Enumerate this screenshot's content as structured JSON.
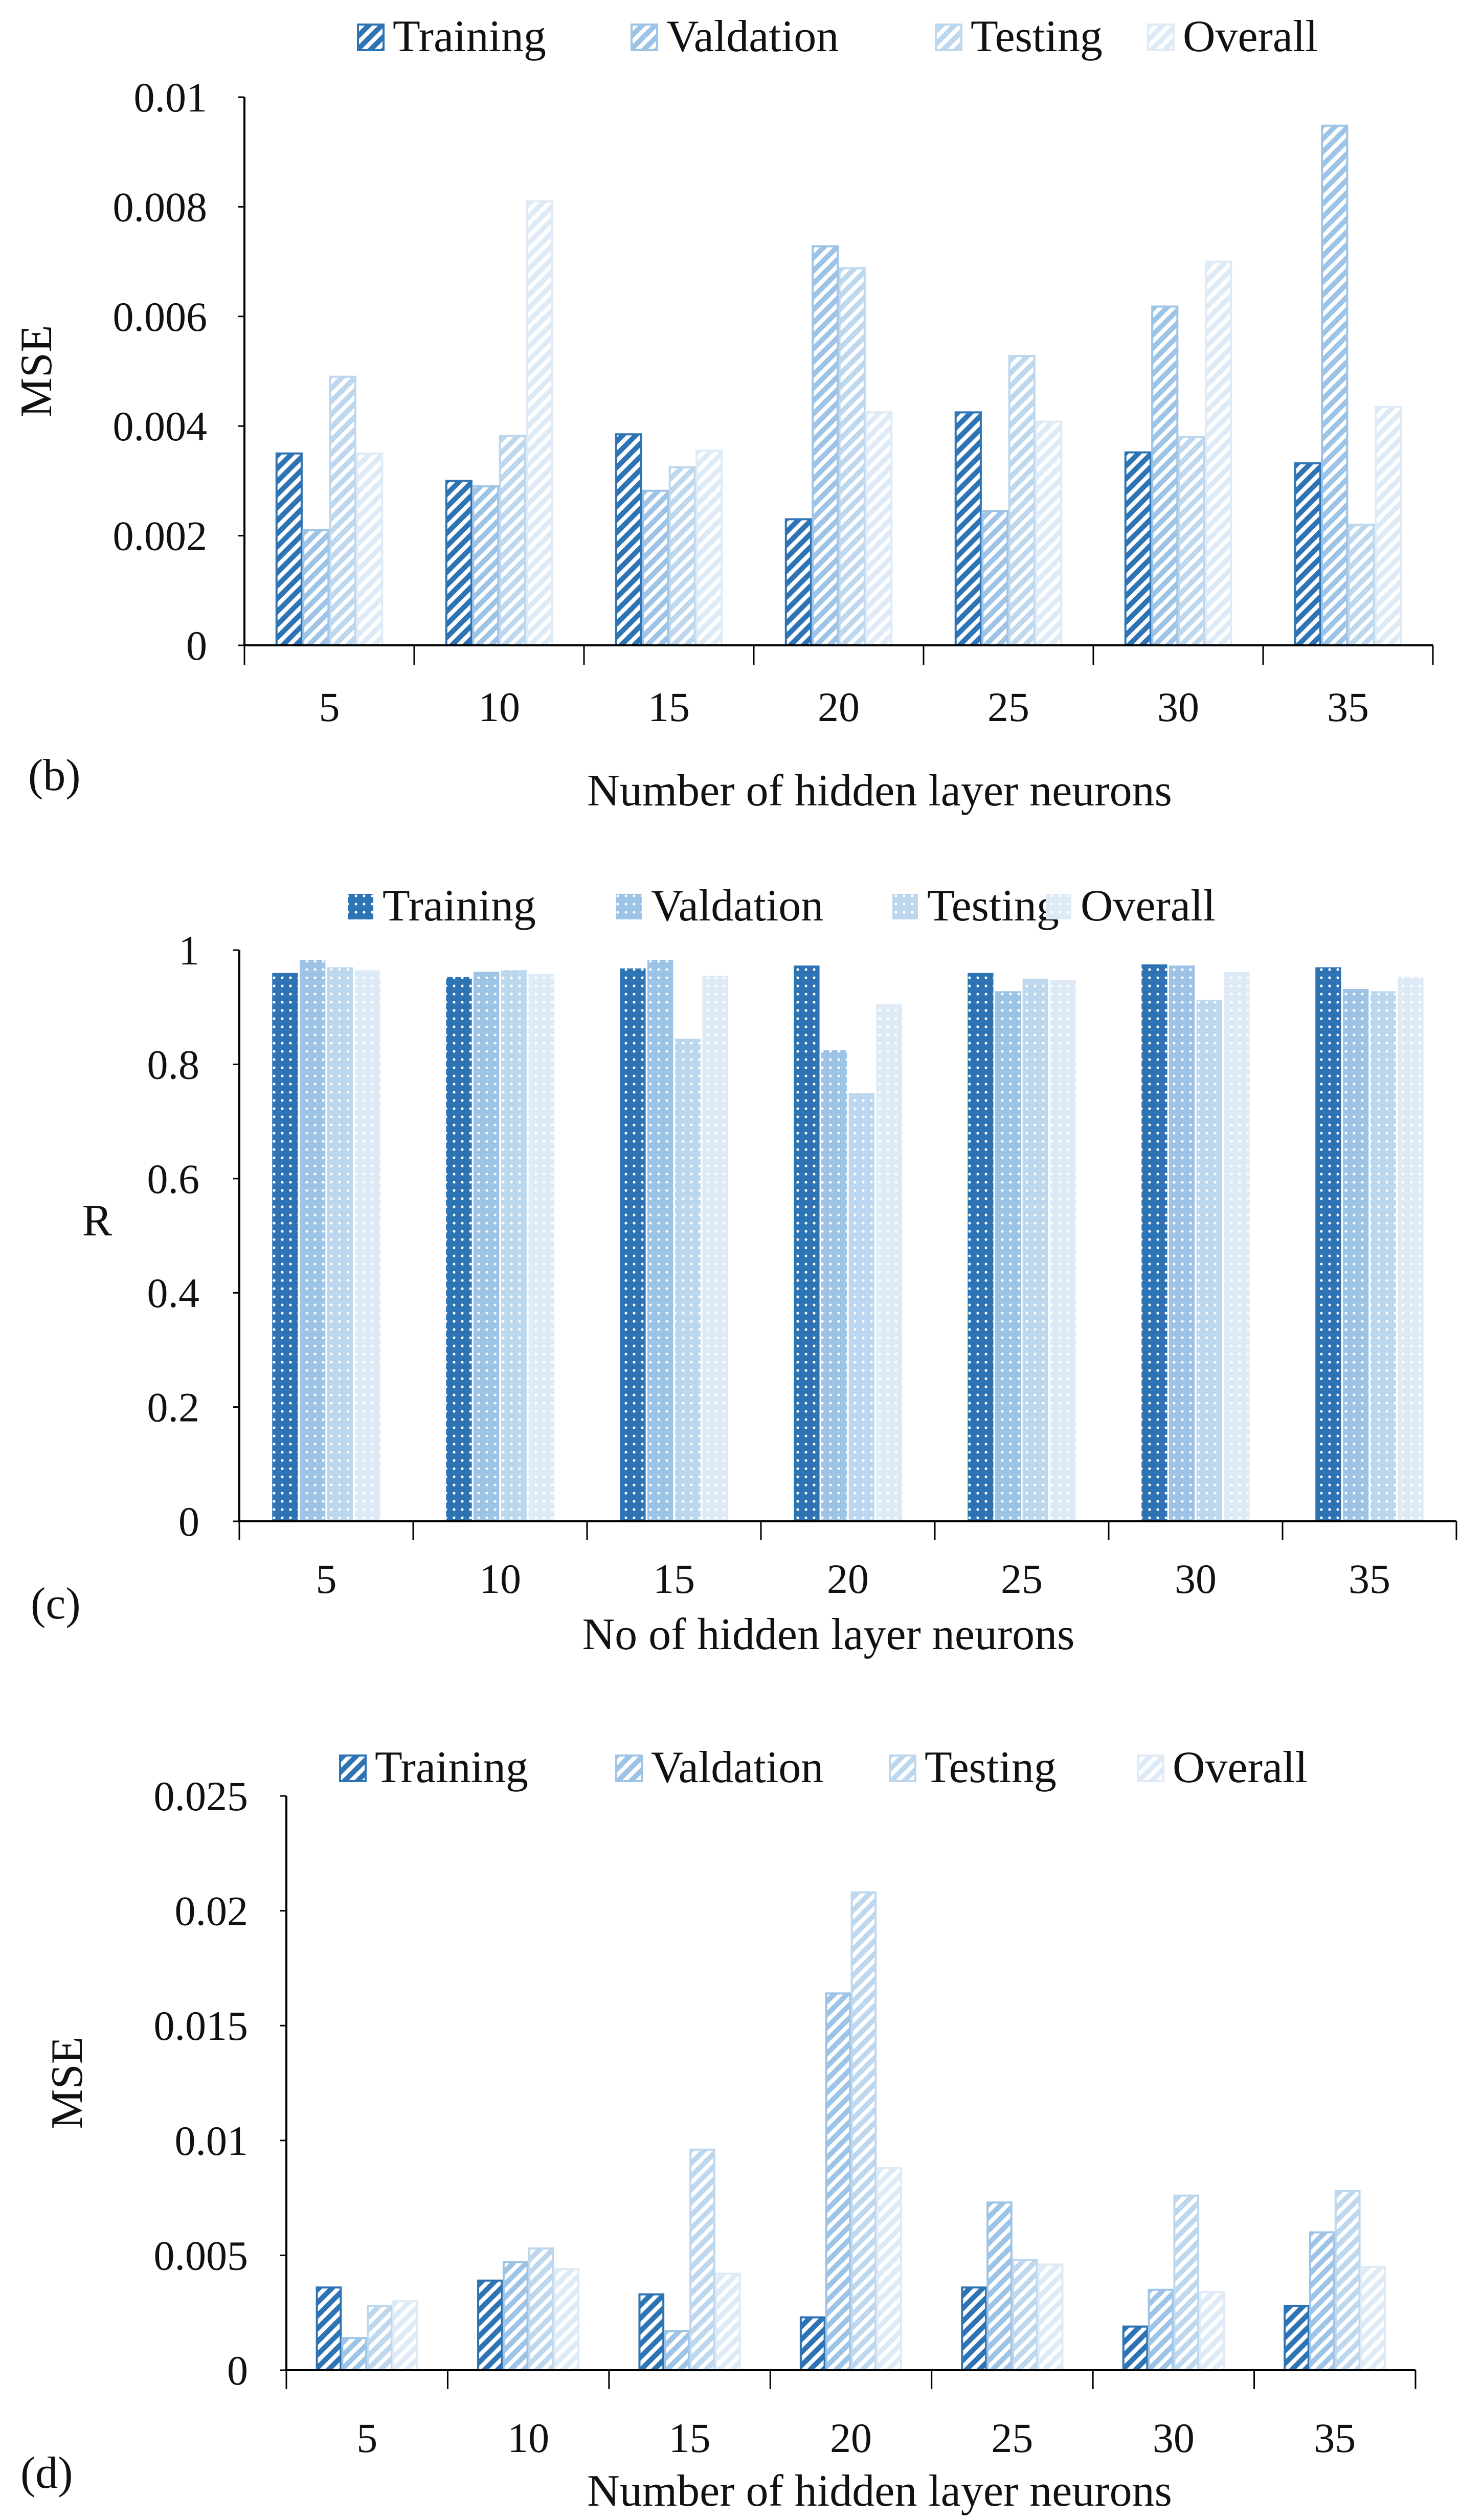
{
  "colors": {
    "training": "#2e74b5",
    "validation": "#9dc3e6",
    "testing": "#bdd7ee",
    "overall": "#deebf7",
    "axis": "#000000",
    "dot": "#ffffff"
  },
  "chart_data": [
    {
      "panel": "(b)",
      "type": "bar",
      "pattern": "hatch",
      "categories": [
        "5",
        "10",
        "15",
        "20",
        "25",
        "30",
        "35"
      ],
      "series": [
        {
          "name": "Training",
          "values": [
            0.0035,
            0.003,
            0.00385,
            0.0023,
            0.00425,
            0.00352,
            0.00332
          ]
        },
        {
          "name": "Valdation",
          "values": [
            0.0021,
            0.0029,
            0.00282,
            0.00728,
            0.00245,
            0.00618,
            0.00948
          ]
        },
        {
          "name": "Testing",
          "values": [
            0.0049,
            0.00382,
            0.00325,
            0.00688,
            0.00528,
            0.0038,
            0.0022
          ]
        },
        {
          "name": "Overall",
          "values": [
            0.0035,
            0.0081,
            0.00355,
            0.00425,
            0.00408,
            0.007,
            0.00435
          ]
        }
      ],
      "xlabel": "Number of hidden layer neurons",
      "ylabel": "MSE",
      "ylim": [
        0,
        0.01
      ],
      "yticks": [
        "0",
        "0.002",
        "0.004",
        "0.006",
        "0.008",
        "0.01"
      ],
      "legend": "top"
    },
    {
      "panel": "(c)",
      "type": "bar",
      "pattern": "dots",
      "categories": [
        "5",
        "10",
        "15",
        "20",
        "25",
        "30",
        "35"
      ],
      "series": [
        {
          "name": "Training",
          "values": [
            0.96,
            0.953,
            0.968,
            0.973,
            0.96,
            0.975,
            0.97
          ]
        },
        {
          "name": "Valdation",
          "values": [
            0.983,
            0.962,
            0.983,
            0.825,
            0.928,
            0.973,
            0.932
          ]
        },
        {
          "name": "Testing",
          "values": [
            0.97,
            0.965,
            0.845,
            0.75,
            0.95,
            0.913,
            0.928
          ]
        },
        {
          "name": "Overall",
          "values": [
            0.965,
            0.958,
            0.955,
            0.905,
            0.948,
            0.962,
            0.953
          ]
        }
      ],
      "xlabel": "No of hidden layer neurons",
      "ylabel": "R",
      "ylim": [
        0,
        1
      ],
      "yticks": [
        "0",
        "0.2",
        "0.4",
        "0.6",
        "0.8",
        "1"
      ],
      "legend": "top"
    },
    {
      "panel": "(d)",
      "type": "bar",
      "pattern": "hatch",
      "categories": [
        "5",
        "10",
        "15",
        "20",
        "25",
        "30",
        "35"
      ],
      "series": [
        {
          "name": "Training",
          "values": [
            0.0036,
            0.0039,
            0.0033,
            0.0023,
            0.0036,
            0.0019,
            0.0028
          ]
        },
        {
          "name": "Valdation",
          "values": [
            0.0014,
            0.0047,
            0.0017,
            0.0164,
            0.0073,
            0.0035,
            0.006
          ]
        },
        {
          "name": "Testing",
          "values": [
            0.0028,
            0.0053,
            0.0096,
            0.0208,
            0.0048,
            0.0076,
            0.0078
          ]
        },
        {
          "name": "Overall",
          "values": [
            0.003,
            0.0044,
            0.0042,
            0.0088,
            0.0046,
            0.0034,
            0.0045
          ]
        }
      ],
      "xlabel": "Number of hidden layer neurons",
      "ylabel": "MSE",
      "ylim": [
        0,
        0.025
      ],
      "yticks": [
        "0",
        "0.005",
        "0.01",
        "0.015",
        "0.02",
        "0.025"
      ],
      "legend": "top"
    }
  ]
}
